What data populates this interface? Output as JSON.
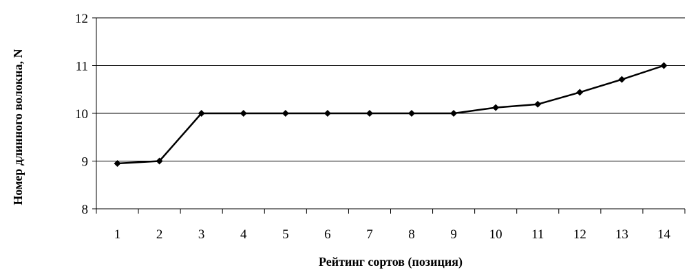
{
  "chart_data": {
    "type": "line",
    "title": "",
    "xlabel": "Рейтинг сортов (позиция)",
    "ylabel": "Номер длинного волокна, N",
    "x": [
      1,
      2,
      3,
      4,
      5,
      6,
      7,
      8,
      9,
      10,
      11,
      12,
      13,
      14
    ],
    "x_tick_labels": [
      "1",
      "2",
      "3",
      "4",
      "5",
      "6",
      "7",
      "8",
      "9",
      "10",
      "11",
      "12",
      "13",
      "14"
    ],
    "y_tick_labels": [
      "8",
      "9",
      "10",
      "11",
      "12"
    ],
    "series": [
      {
        "values": [
          8.95,
          9.0,
          10.0,
          10.0,
          10.0,
          10.0,
          10.0,
          10.0,
          10.0,
          10.12,
          10.19,
          10.44,
          10.71,
          11.0
        ],
        "color": "#000000",
        "marker": "diamond"
      }
    ],
    "ylim": [
      8,
      12
    ],
    "grid": "horizontal",
    "legend": "none"
  }
}
